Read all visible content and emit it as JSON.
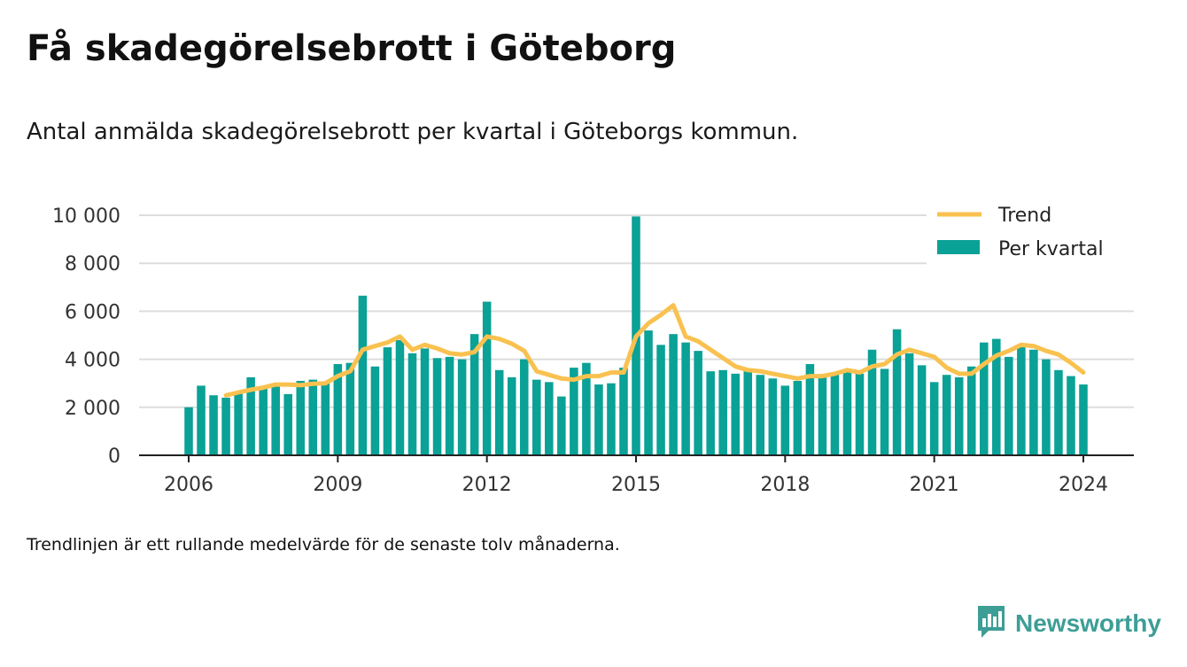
{
  "title": "Få skadegörelsebrott i Göteborg",
  "subtitle": "Antal anmälda skadegörelsebrott per kvartal i Göteborgs kommun.",
  "footnote": "Trendlinjen är ett rullande medelvärde för de senaste tolv månaderna.",
  "brand": {
    "name": "Newsworthy",
    "icon": "newsworthy-logo-icon"
  },
  "colors": {
    "bars": "#0aa196",
    "trend": "#f9c14f",
    "grid": "#dddddd",
    "axis": "#222222"
  },
  "chart_data": {
    "type": "bar",
    "x_start": 2006,
    "quarters_per_year": 4,
    "ylim": [
      0,
      10000
    ],
    "yticks": [
      0,
      2000,
      4000,
      6000,
      8000,
      10000
    ],
    "ytick_labels": [
      "0",
      "2 000",
      "4 000",
      "6 000",
      "8 000",
      "10 000"
    ],
    "xticks": [
      2006,
      2009,
      2012,
      2015,
      2018,
      2021,
      2024
    ],
    "xtick_labels": [
      "2006",
      "2009",
      "2012",
      "2015",
      "2018",
      "2021",
      "2024"
    ],
    "legend_position": "top-right",
    "series": [
      {
        "name": "Per kvartal",
        "type": "bar",
        "values": [
          2000,
          2900,
          2500,
          2400,
          2600,
          3250,
          2800,
          2900,
          2550,
          3100,
          3150,
          3000,
          3800,
          3850,
          6650,
          3700,
          4500,
          4800,
          4250,
          4450,
          4050,
          4100,
          4000,
          5050,
          6400,
          3550,
          3250,
          4000,
          3150,
          3050,
          2450,
          3650,
          3850,
          2950,
          3000,
          3650,
          9950,
          5200,
          4600,
          5050,
          4700,
          4350,
          3500,
          3550,
          3400,
          3500,
          3350,
          3200,
          2900,
          3100,
          3800,
          3250,
          3450,
          3450,
          3400,
          4400,
          3600,
          5250,
          4250,
          3750,
          3050,
          3350,
          3250,
          3700,
          4700,
          4850,
          4100,
          4500,
          4400,
          4000,
          3550,
          3300,
          2950
        ]
      },
      {
        "name": "Trend",
        "type": "line",
        "values": [
          null,
          null,
          null,
          2500,
          2620,
          2730,
          2820,
          2950,
          2950,
          2920,
          2980,
          3000,
          3300,
          3500,
          4400,
          4550,
          4700,
          4950,
          4400,
          4600,
          4450,
          4250,
          4200,
          4300,
          4950,
          4850,
          4650,
          4350,
          3500,
          3350,
          3200,
          3150,
          3300,
          3300,
          3450,
          3450,
          4950,
          5500,
          5850,
          6250,
          4950,
          4750,
          4400,
          4050,
          3700,
          3550,
          3500,
          3400,
          3300,
          3200,
          3300,
          3300,
          3400,
          3550,
          3450,
          3700,
          3800,
          4200,
          4400,
          4250,
          4100,
          3650,
          3400,
          3400,
          3800,
          4150,
          4350,
          4600,
          4550,
          4350,
          4200,
          3850,
          3450
        ]
      }
    ]
  }
}
